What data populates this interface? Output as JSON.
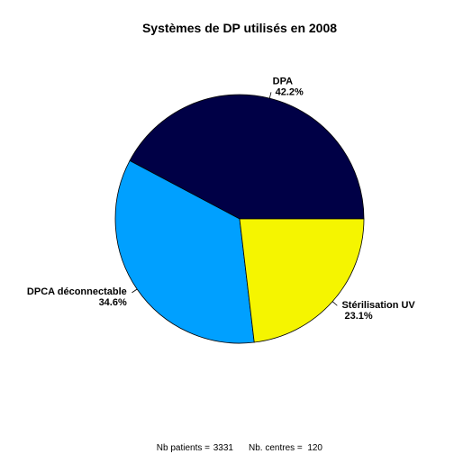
{
  "chart_data": {
    "type": "pie",
    "title": "Systèmes de DP utilisés en 2008",
    "slices": [
      {
        "label": "DPA",
        "percent_label": "42.2%",
        "value": 42.2,
        "color": "#000046"
      },
      {
        "label": "DPCA déconnectable",
        "percent_label": "34.6%",
        "value": 34.6,
        "color": "#00A0FF"
      },
      {
        "label": "Stérilisation UV",
        "percent_label": "23.1%",
        "value": 23.1,
        "color": "#F5F500"
      }
    ],
    "start_angle_deg": 0,
    "direction": "counterclockwise",
    "footer": {
      "patients_label": "Nb patients =",
      "patients_value": "3331",
      "centres_label": "Nb. centres =",
      "centres_value": "120"
    }
  }
}
